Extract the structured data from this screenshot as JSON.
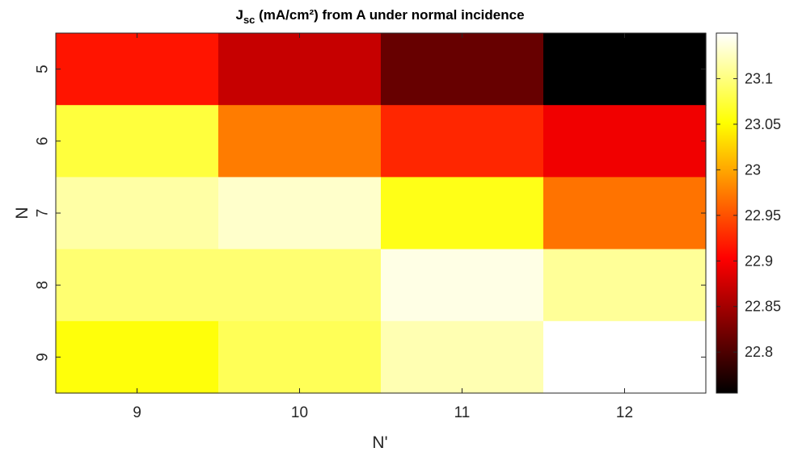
{
  "chart_data": {
    "type": "heatmap",
    "title_main": "J",
    "title_sub": "sc",
    "title_rest": " (mA/cm²) from A under normal incidence",
    "xlabel": "N'",
    "ylabel": "N",
    "x_categories": [
      "9",
      "10",
      "11",
      "12"
    ],
    "y_categories": [
      "5",
      "6",
      "7",
      "8",
      "9"
    ],
    "values": [
      [
        22.915,
        22.87,
        22.815,
        22.755
      ],
      [
        23.075,
        22.975,
        22.925,
        22.895
      ],
      [
        23.115,
        23.13,
        23.06,
        22.97
      ],
      [
        23.095,
        23.095,
        23.14,
        23.11
      ],
      [
        23.055,
        23.085,
        23.12,
        23.15
      ]
    ],
    "colorbar": {
      "colormap": "hot",
      "min": 22.755,
      "max": 23.15,
      "ticks": [
        22.8,
        22.85,
        22.9,
        22.95,
        23,
        23.05,
        23.1
      ],
      "tick_labels": [
        "22.8",
        "22.85",
        "22.9",
        "22.95",
        "23",
        "23.05",
        "23.1"
      ]
    }
  }
}
